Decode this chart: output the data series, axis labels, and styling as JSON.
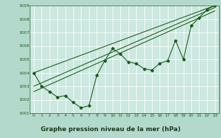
{
  "title": "Graphe pression niveau de la mer (hPa)",
  "bg_color": "#b3d9cc",
  "plot_bg_color": "#cce8e0",
  "label_bg_color": "#5a8a5a",
  "grid_color": "#ffffff",
  "line_color": "#1a5c1a",
  "xlim": [
    -0.5,
    23.5
  ],
  "ylim": [
    1001,
    1009
  ],
  "xticks": [
    0,
    1,
    2,
    3,
    4,
    5,
    6,
    7,
    8,
    9,
    10,
    11,
    12,
    13,
    14,
    15,
    16,
    17,
    18,
    19,
    20,
    21,
    22,
    23
  ],
  "yticks": [
    1001,
    1002,
    1003,
    1004,
    1005,
    1006,
    1007,
    1008,
    1009
  ],
  "series1_x": [
    0,
    1,
    2,
    3,
    4,
    5,
    6,
    7,
    8,
    9,
    10,
    11,
    12,
    13,
    14,
    15,
    16,
    17,
    18,
    19,
    20,
    21,
    22,
    23
  ],
  "series1_y": [
    1004.0,
    1003.0,
    1002.6,
    1002.2,
    1002.3,
    1001.8,
    1001.4,
    1001.55,
    1003.8,
    1004.9,
    1005.8,
    1005.4,
    1004.8,
    1004.7,
    1004.3,
    1004.2,
    1004.7,
    1004.9,
    1006.4,
    1005.0,
    1007.5,
    1008.1,
    1008.7,
    1009.0
  ],
  "series2_x": [
    0,
    23
  ],
  "series2_y": [
    1004.0,
    1009.0
  ],
  "series3_x": [
    0,
    23
  ],
  "series3_y": [
    1003.0,
    1008.85
  ],
  "series4_x": [
    0,
    23
  ],
  "series4_y": [
    1002.6,
    1008.6
  ]
}
